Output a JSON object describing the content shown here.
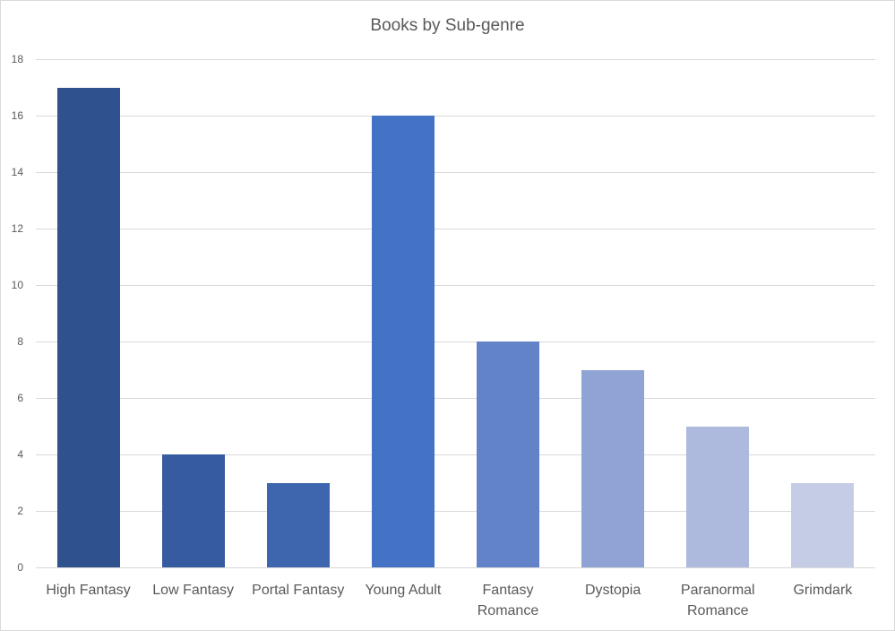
{
  "chart_data": {
    "type": "bar",
    "title": "Books by Sub-genre",
    "xlabel": "",
    "ylabel": "",
    "categories": [
      "High Fantasy",
      "Low Fantasy",
      "Portal Fantasy",
      "Young Adult",
      "Fantasy Romance",
      "Dystopia",
      "Paranormal Romance",
      "Grimdark"
    ],
    "values": [
      17,
      4,
      3,
      16,
      8,
      7,
      5,
      3
    ],
    "colors": [
      "#2f528f",
      "#365ba0",
      "#3d66ae",
      "#4472c4",
      "#6383c9",
      "#8fa3d4",
      "#adbade",
      "#c5cde6"
    ],
    "ylim": [
      0,
      18
    ],
    "yticks": [
      0,
      2,
      4,
      6,
      8,
      10,
      12,
      14,
      16,
      18
    ],
    "grid": true,
    "legend": "none"
  }
}
